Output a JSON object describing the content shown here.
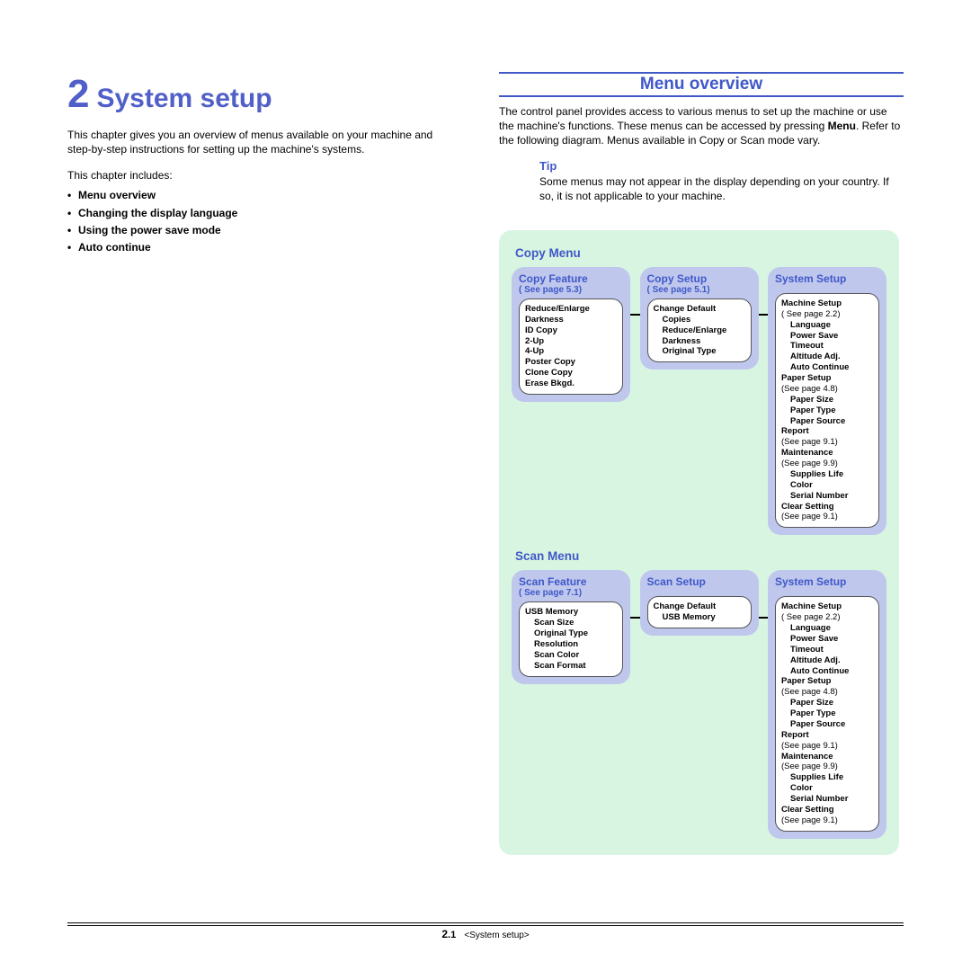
{
  "chapter": {
    "number": "2",
    "title": "System setup",
    "intro": "This chapter gives you an overview of menus available on your machine and step-by-step instructions for setting up the machine's systems.",
    "includes_label": "This chapter includes:",
    "bullets": [
      "Menu overview",
      "Changing the display language",
      "Using the power save mode",
      "Auto continue"
    ]
  },
  "right": {
    "section_title": "Menu overview",
    "p1a": "The control panel provides access to various menus to set up the machine or use the machine's functions. These menus can be accessed by pressing ",
    "p1_bold": "Menu",
    "p1b": ". Refer to the following diagram. Menus available in Copy or Scan mode vary.",
    "tip_label": "Tip",
    "tip_body": "Some menus may not appear in the display depending on your country. If so, it is not applicable to your machine."
  },
  "diagram": {
    "bg_color": "#d8f5e2",
    "box_color": "#bfc7ed",
    "title_color": "#4058c8",
    "copy_menu": {
      "title": "Copy Menu",
      "boxes": [
        {
          "title": "Copy Feature",
          "sub": "( See page 5.3)",
          "items": [
            {
              "t": "Reduce/Enlarge",
              "b": true
            },
            {
              "t": "Darkness",
              "b": true
            },
            {
              "t": "ID Copy",
              "b": true
            },
            {
              "t": "2-Up",
              "b": true
            },
            {
              "t": "4-Up",
              "b": true
            },
            {
              "t": "Poster Copy",
              "b": true
            },
            {
              "t": "Clone Copy",
              "b": true
            },
            {
              "t": "Erase Bkgd.",
              "b": true
            }
          ]
        },
        {
          "title": "Copy Setup",
          "sub": "( See page 5.1)",
          "items": [
            {
              "t": "Change Default",
              "b": true
            },
            {
              "t": "Copies",
              "b": true,
              "indent": 1
            },
            {
              "t": "Reduce/Enlarge",
              "b": true,
              "indent": 1
            },
            {
              "t": "Darkness",
              "b": true,
              "indent": 1
            },
            {
              "t": "Original Type",
              "b": true,
              "indent": 1
            }
          ]
        },
        {
          "title": "System Setup",
          "sub": "",
          "items": [
            {
              "t": "Machine Setup",
              "b": true
            },
            {
              "t": "( See page 2.2)",
              "b": false
            },
            {
              "t": "Language",
              "b": true,
              "indent": 1
            },
            {
              "t": "Power Save",
              "b": true,
              "indent": 1
            },
            {
              "t": "Timeout",
              "b": true,
              "indent": 1
            },
            {
              "t": "Altitude Adj.",
              "b": true,
              "indent": 1
            },
            {
              "t": "Auto Continue",
              "b": true,
              "indent": 1
            },
            {
              "t": "Paper Setup",
              "b": true
            },
            {
              "t": "(See page 4.8)",
              "b": false
            },
            {
              "t": "Paper Size",
              "b": true,
              "indent": 1
            },
            {
              "t": "Paper Type",
              "b": true,
              "indent": 1
            },
            {
              "t": "Paper Source",
              "b": true,
              "indent": 1
            },
            {
              "t": "Report",
              "b": true
            },
            {
              "t": "(See page 9.1)",
              "b": false
            },
            {
              "t": "Maintenance",
              "b": true
            },
            {
              "t": "(See page  9.9)",
              "b": false
            },
            {
              "t": "Supplies Life",
              "b": true,
              "indent": 1
            },
            {
              "t": "Color",
              "b": true,
              "indent": 1
            },
            {
              "t": "Serial Number",
              "b": true,
              "indent": 1
            },
            {
              "t": "Clear Setting",
              "b": true
            },
            {
              "t": "(See page  9.1)",
              "b": false
            }
          ]
        }
      ]
    },
    "scan_menu": {
      "title": "Scan  Menu",
      "boxes": [
        {
          "title": "Scan Feature",
          "sub": "( See page 7.1)",
          "items": [
            {
              "t": "USB Memory",
              "b": true
            },
            {
              "t": "Scan Size",
              "b": true,
              "indent": 1
            },
            {
              "t": "Original Type",
              "b": true,
              "indent": 1
            },
            {
              "t": "Resolution",
              "b": true,
              "indent": 1
            },
            {
              "t": "Scan Color",
              "b": true,
              "indent": 1
            },
            {
              "t": "Scan Format",
              "b": true,
              "indent": 1
            }
          ]
        },
        {
          "title": "Scan Setup",
          "sub": "",
          "items": [
            {
              "t": "Change Default",
              "b": true
            },
            {
              "t": "USB Memory",
              "b": true,
              "indent": 1
            }
          ]
        },
        {
          "title": "System Setup",
          "sub": "",
          "items": [
            {
              "t": "Machine Setup",
              "b": true
            },
            {
              "t": "( See page 2.2)",
              "b": false
            },
            {
              "t": "Language",
              "b": true,
              "indent": 1
            },
            {
              "t": "Power Save",
              "b": true,
              "indent": 1
            },
            {
              "t": "Timeout",
              "b": true,
              "indent": 1
            },
            {
              "t": "Altitude Adj.",
              "b": true,
              "indent": 1
            },
            {
              "t": "Auto Continue",
              "b": true,
              "indent": 1
            },
            {
              "t": "Paper Setup",
              "b": true
            },
            {
              "t": "(See page 4.8)",
              "b": false
            },
            {
              "t": "Paper Size",
              "b": true,
              "indent": 1
            },
            {
              "t": "Paper Type",
              "b": true,
              "indent": 1
            },
            {
              "t": "Paper Source",
              "b": true,
              "indent": 1
            },
            {
              "t": "Report",
              "b": true
            },
            {
              "t": "(See page 9.1)",
              "b": false
            },
            {
              "t": "Maintenance",
              "b": true
            },
            {
              "t": "(See page  9.9)",
              "b": false
            },
            {
              "t": "Supplies Life",
              "b": true,
              "indent": 1
            },
            {
              "t": "Color",
              "b": true,
              "indent": 1
            },
            {
              "t": "Serial Number",
              "b": true,
              "indent": 1
            },
            {
              "t": "Clear Setting",
              "b": true
            },
            {
              "t": "(See page  9.1)",
              "b": false
            }
          ]
        }
      ]
    }
  },
  "footer": {
    "page_major": "2",
    "page_minor": ".1",
    "label": "<System setup>"
  }
}
